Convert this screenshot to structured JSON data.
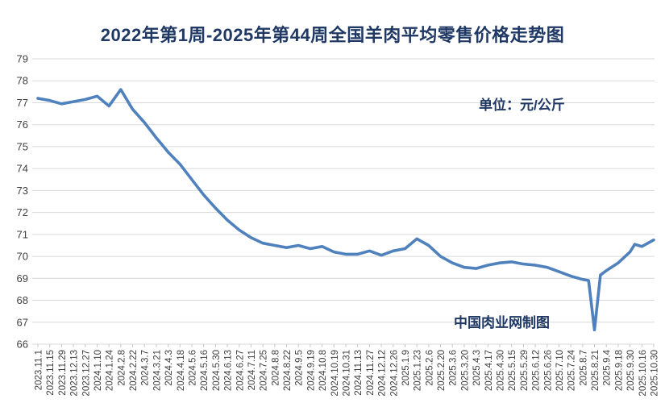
{
  "title": "2022年第1周-2025年第44周全国羊肉平均零售价格走势图",
  "unit_label": "单位：元/公斤",
  "credit": "中国肉业网制图",
  "colors": {
    "line": "#4f81bd",
    "title_text": "#1f3864",
    "grid": "#d9d9d9",
    "tick": "#c8c8c8",
    "axis_text": "#3f3f3f",
    "background": "#ffffff"
  },
  "chart_data": {
    "type": "line",
    "title": "2022年第1周-2025年第44周全国羊肉平均零售价格走势图",
    "xlabel": "",
    "ylabel": "元/公斤",
    "ylim": [
      66,
      79
    ],
    "yticks": [
      66,
      67,
      68,
      69,
      70,
      71,
      72,
      73,
      74,
      75,
      76,
      77,
      78,
      79
    ],
    "grid": true,
    "legend_position": "none",
    "categories": [
      "2023.11.1",
      "2023.11.15",
      "2023.11.29",
      "2023.12.13",
      "2023.12.27",
      "2024.1.10",
      "2024.1.24",
      "2024.2.8",
      "2024.2.22",
      "2024.3.7",
      "2024.3.21",
      "2024.4.3",
      "2024.4.18",
      "2024.5.6",
      "2024.5.16",
      "2024.5.30",
      "2024.6.13",
      "2024.6.27",
      "2024.7.11",
      "2024.7.25",
      "2024.8.8",
      "2024.8.22",
      "2024.9.5",
      "2024.9.19",
      "2024.10.8",
      "2024.10.19",
      "2024.10.31",
      "2024.11.13",
      "2024.11.27",
      "2024.12.12",
      "2024.12.26",
      "2025.1.9",
      "2025.1.23",
      "2025.2.6",
      "2025.2.20",
      "2025.3.6",
      "2025.3.20",
      "2025.4.3",
      "2025.4.17",
      "2025.4.30",
      "2025.5.15",
      "2025.5.29",
      "2025.6.12",
      "2025.6.26",
      "2025.7.10",
      "2025.7.24",
      "2025.8.7",
      "2025.8.21",
      "2025.9.4",
      "2025.9.18",
      "2025.9.30",
      "2025.10.16",
      "2025.10.30"
    ],
    "series": [
      {
        "name": "全国羊肉平均零售价格",
        "points": [
          {
            "x": 0,
            "v": 77.2
          },
          {
            "x": 1,
            "v": 77.1
          },
          {
            "x": 2,
            "v": 76.95
          },
          {
            "x": 3,
            "v": 77.05
          },
          {
            "x": 4,
            "v": 77.15
          },
          {
            "x": 5,
            "v": 77.3
          },
          {
            "x": 6,
            "v": 76.85
          },
          {
            "x": 7,
            "v": 77.6
          },
          {
            "x": 8,
            "v": 76.7
          },
          {
            "x": 9,
            "v": 76.1
          },
          {
            "x": 10,
            "v": 75.4
          },
          {
            "x": 11,
            "v": 74.75
          },
          {
            "x": 12,
            "v": 74.2
          },
          {
            "x": 13,
            "v": 73.5
          },
          {
            "x": 14,
            "v": 72.8
          },
          {
            "x": 15,
            "v": 72.2
          },
          {
            "x": 16,
            "v": 71.65
          },
          {
            "x": 17,
            "v": 71.2
          },
          {
            "x": 18,
            "v": 70.85
          },
          {
            "x": 19,
            "v": 70.6
          },
          {
            "x": 20,
            "v": 70.5
          },
          {
            "x": 21,
            "v": 70.4
          },
          {
            "x": 22,
            "v": 70.5
          },
          {
            "x": 23,
            "v": 70.35
          },
          {
            "x": 24,
            "v": 70.45
          },
          {
            "x": 25,
            "v": 70.2
          },
          {
            "x": 26,
            "v": 70.1
          },
          {
            "x": 27,
            "v": 70.1
          },
          {
            "x": 28,
            "v": 70.25
          },
          {
            "x": 29,
            "v": 70.05
          },
          {
            "x": 30,
            "v": 70.25
          },
          {
            "x": 31,
            "v": 70.35
          },
          {
            "x": 32,
            "v": 70.8
          },
          {
            "x": 33,
            "v": 70.5
          },
          {
            "x": 34,
            "v": 70.0
          },
          {
            "x": 35,
            "v": 69.7
          },
          {
            "x": 36,
            "v": 69.5
          },
          {
            "x": 37,
            "v": 69.45
          },
          {
            "x": 38,
            "v": 69.6
          },
          {
            "x": 39,
            "v": 69.7
          },
          {
            "x": 40,
            "v": 69.75
          },
          {
            "x": 41,
            "v": 69.65
          },
          {
            "x": 42,
            "v": 69.6
          },
          {
            "x": 43,
            "v": 69.5
          },
          {
            "x": 44,
            "v": 69.3
          },
          {
            "x": 45,
            "v": 69.1
          },
          {
            "x": 46,
            "v": 68.95
          },
          {
            "x": 46.5,
            "v": 68.9
          },
          {
            "x": 47,
            "v": 66.65
          },
          {
            "x": 47.5,
            "v": 69.15
          },
          {
            "x": 48,
            "v": 69.35
          },
          {
            "x": 49,
            "v": 69.7
          },
          {
            "x": 50,
            "v": 70.2
          },
          {
            "x": 50.4,
            "v": 70.55
          },
          {
            "x": 51,
            "v": 70.45
          },
          {
            "x": 52,
            "v": 70.75
          }
        ]
      }
    ]
  }
}
